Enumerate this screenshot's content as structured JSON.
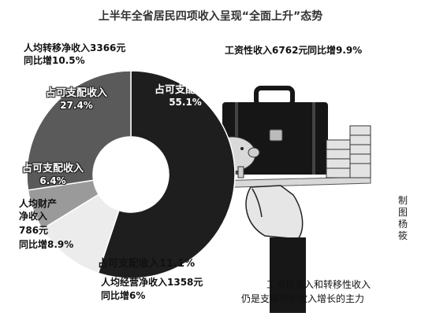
{
  "chart_data": {
    "type": "pie",
    "style": "donut",
    "title": "上半年全省居民四项收入呈现“全面上升”态势",
    "slices": [
      {
        "key": "wage",
        "share_label": "占可支配收入",
        "share_pct": 55.1,
        "share_text": "55.1%",
        "name_line": "工资性收入",
        "amount_text": "6762元",
        "growth_text": "同比增9.9%",
        "color": "#1e1e1e"
      },
      {
        "key": "business",
        "share_label": "占可支配收入",
        "share_pct": 11.1,
        "share_text": "11.1%",
        "name_line": "人均经营净收入1358元",
        "growth_text": "同比增6%",
        "color": "#ececec"
      },
      {
        "key": "property",
        "share_label": "占可支配收入",
        "share_pct": 6.4,
        "share_text": "6.4%",
        "name_lines": [
          "人均财产",
          "净收入",
          "786元"
        ],
        "growth_text": "同比增8.9%",
        "color": "#9a9a9a"
      },
      {
        "key": "transfer",
        "share_label": "占可支配收入",
        "share_pct": 27.4,
        "share_text": "27.4%",
        "name_line": "人均转移净收入3366元",
        "growth_text": "同比增10.5%",
        "color": "#5a5a5a"
      }
    ],
    "caption_lines": [
      "工资性收入和转移性收入",
      "仍是支撑居民收入增长的主力"
    ],
    "credit": "制图杨筱"
  }
}
